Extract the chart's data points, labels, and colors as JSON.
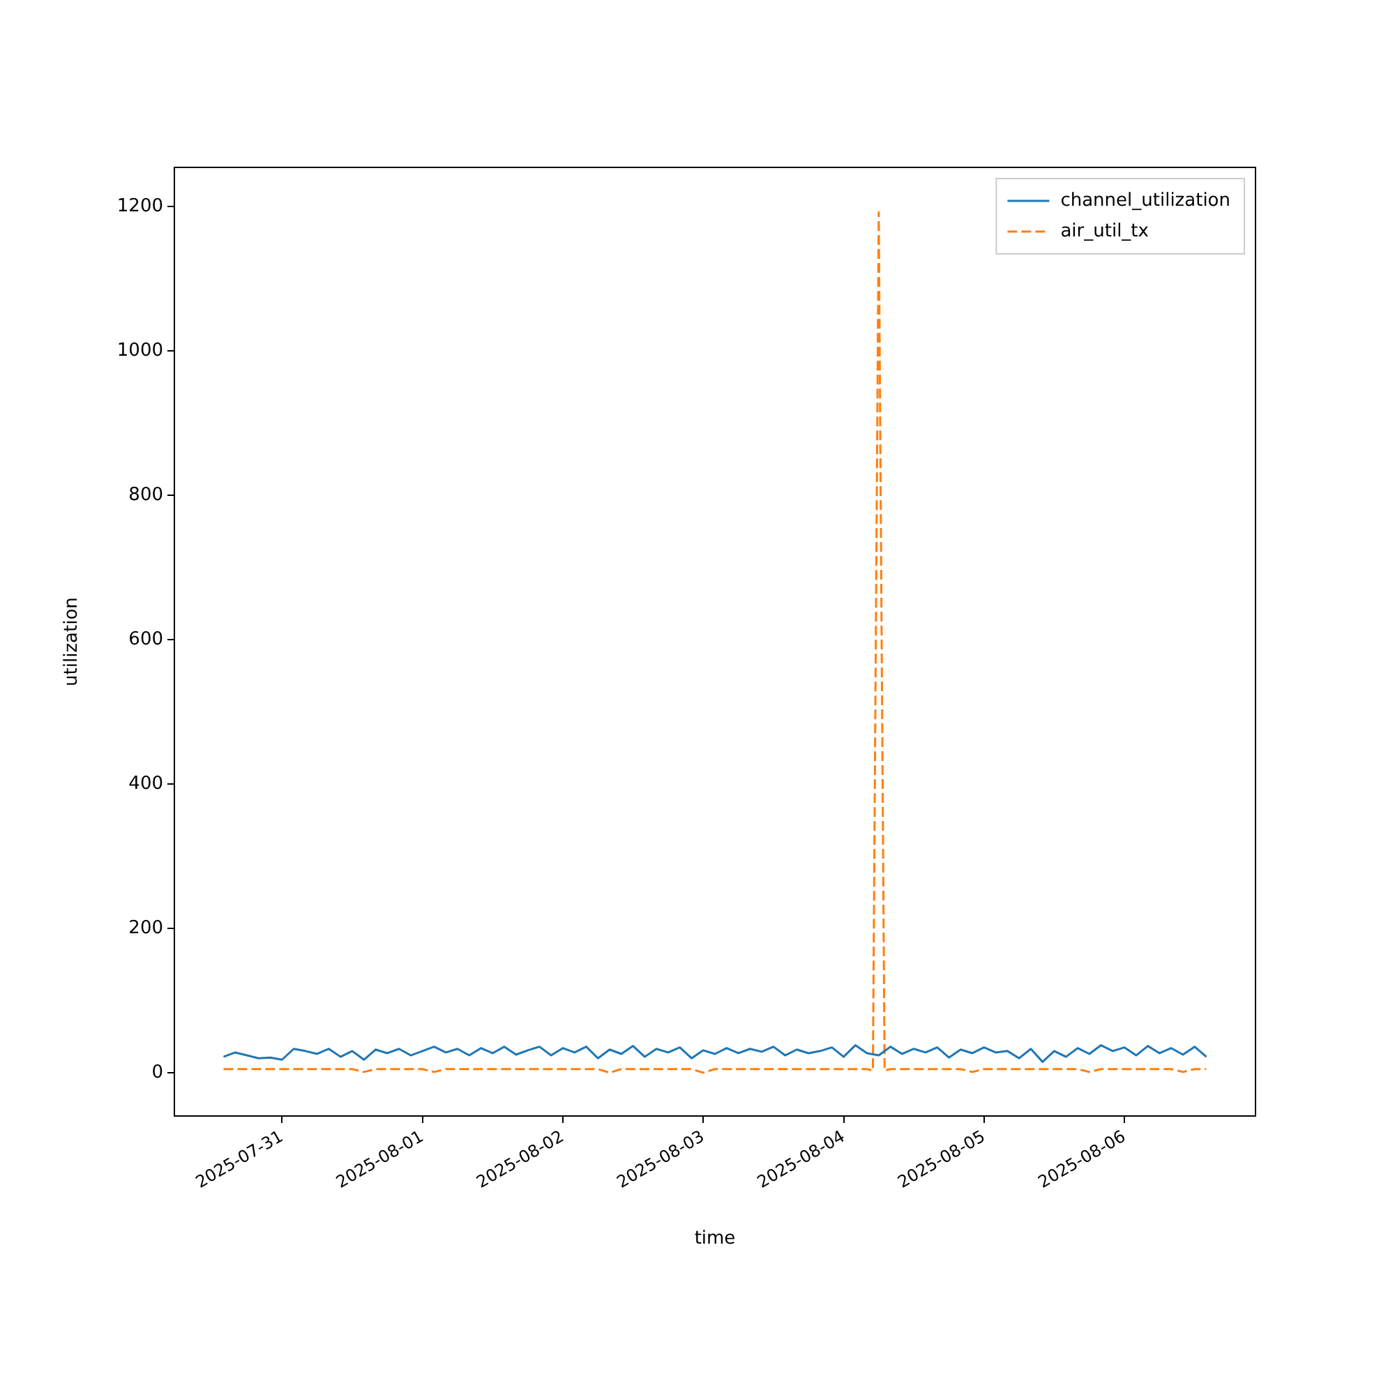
{
  "chart_data": {
    "type": "line",
    "xlabel": "time",
    "ylabel": "utilization",
    "xlim": [
      "2025-07-30T05:36",
      "2025-08-06T22:24"
    ],
    "xticks": [
      "2025-07-31",
      "2025-08-01",
      "2025-08-02",
      "2025-08-03",
      "2025-08-04",
      "2025-08-05",
      "2025-08-06"
    ],
    "ylim": [
      -60,
      1254
    ],
    "yticks": [
      0,
      200,
      400,
      600,
      800,
      1000,
      1200
    ],
    "grid": false,
    "legend": "top right",
    "marker": "none",
    "series": [
      {
        "name": "channel_utilization",
        "color": "#1f77b4",
        "line_style": "solid",
        "x": [
          "2025-07-30T14:00",
          "2025-07-30T16:00",
          "2025-07-30T18:00",
          "2025-07-30T20:00",
          "2025-07-30T22:00",
          "2025-07-31T00:00",
          "2025-07-31T02:00",
          "2025-07-31T04:00",
          "2025-07-31T06:00",
          "2025-07-31T08:00",
          "2025-07-31T10:00",
          "2025-07-31T12:00",
          "2025-07-31T14:00",
          "2025-07-31T16:00",
          "2025-07-31T18:00",
          "2025-07-31T20:00",
          "2025-07-31T22:00",
          "2025-08-01T00:00",
          "2025-08-01T02:00",
          "2025-08-01T04:00",
          "2025-08-01T06:00",
          "2025-08-01T08:00",
          "2025-08-01T10:00",
          "2025-08-01T12:00",
          "2025-08-01T14:00",
          "2025-08-01T16:00",
          "2025-08-01T18:00",
          "2025-08-01T20:00",
          "2025-08-01T22:00",
          "2025-08-02T00:00",
          "2025-08-02T02:00",
          "2025-08-02T04:00",
          "2025-08-02T06:00",
          "2025-08-02T08:00",
          "2025-08-02T10:00",
          "2025-08-02T12:00",
          "2025-08-02T14:00",
          "2025-08-02T16:00",
          "2025-08-02T18:00",
          "2025-08-02T20:00",
          "2025-08-02T22:00",
          "2025-08-03T00:00",
          "2025-08-03T02:00",
          "2025-08-03T04:00",
          "2025-08-03T06:00",
          "2025-08-03T08:00",
          "2025-08-03T10:00",
          "2025-08-03T12:00",
          "2025-08-03T14:00",
          "2025-08-03T16:00",
          "2025-08-03T18:00",
          "2025-08-03T20:00",
          "2025-08-03T22:00",
          "2025-08-04T00:00",
          "2025-08-04T02:00",
          "2025-08-04T04:00",
          "2025-08-04T06:00",
          "2025-08-04T08:00",
          "2025-08-04T10:00",
          "2025-08-04T12:00",
          "2025-08-04T14:00",
          "2025-08-04T16:00",
          "2025-08-04T18:00",
          "2025-08-04T20:00",
          "2025-08-04T22:00",
          "2025-08-05T00:00",
          "2025-08-05T02:00",
          "2025-08-05T04:00",
          "2025-08-05T06:00",
          "2025-08-05T08:00",
          "2025-08-05T10:00",
          "2025-08-05T12:00",
          "2025-08-05T14:00",
          "2025-08-05T16:00",
          "2025-08-05T18:00",
          "2025-08-05T20:00",
          "2025-08-05T22:00",
          "2025-08-06T00:00",
          "2025-08-06T02:00",
          "2025-08-06T04:00",
          "2025-08-06T06:00",
          "2025-08-06T08:00",
          "2025-08-06T10:00",
          "2025-08-06T12:00",
          "2025-08-06T14:00"
        ],
        "values": [
          22,
          28,
          24,
          20,
          21,
          18,
          33,
          30,
          26,
          33,
          22,
          30,
          18,
          32,
          27,
          33,
          24,
          30,
          36,
          28,
          33,
          24,
          34,
          27,
          36,
          25,
          31,
          36,
          24,
          34,
          28,
          36,
          20,
          32,
          26,
          37,
          22,
          33,
          28,
          35,
          20,
          31,
          26,
          34,
          27,
          33,
          29,
          36,
          24,
          32,
          27,
          30,
          35,
          22,
          38,
          27,
          24,
          36,
          26,
          33,
          28,
          35,
          21,
          32,
          27,
          35,
          28,
          30,
          20,
          33,
          15,
          30,
          22,
          34,
          26,
          38,
          30,
          35,
          24,
          37,
          27,
          34,
          25,
          36,
          22
        ]
      },
      {
        "name": "air_util_tx",
        "color": "#ff7f0e",
        "line_style": "dashed",
        "x": [
          "2025-07-30T14:00",
          "2025-07-31T12:00",
          "2025-07-31T14:00",
          "2025-07-31T16:00",
          "2025-08-01T00:00",
          "2025-08-01T02:00",
          "2025-08-01T04:00",
          "2025-08-02T06:00",
          "2025-08-02T08:00",
          "2025-08-02T10:00",
          "2025-08-02T22:00",
          "2025-08-03T00:00",
          "2025-08-03T02:00",
          "2025-08-04T04:00",
          "2025-08-04T05:00",
          "2025-08-04T06:00",
          "2025-08-04T07:00",
          "2025-08-04T08:00",
          "2025-08-04T20:00",
          "2025-08-04T22:00",
          "2025-08-05T00:00",
          "2025-08-05T16:00",
          "2025-08-05T18:00",
          "2025-08-05T20:00",
          "2025-08-06T08:00",
          "2025-08-06T10:00",
          "2025-08-06T12:00",
          "2025-08-06T14:00"
        ],
        "values": [
          5,
          5,
          1,
          5,
          5,
          1,
          5,
          5,
          0,
          5,
          5,
          0,
          5,
          5,
          3,
          1192,
          3,
          5,
          5,
          1,
          5,
          5,
          1,
          5,
          5,
          1,
          5,
          5
        ]
      }
    ]
  }
}
